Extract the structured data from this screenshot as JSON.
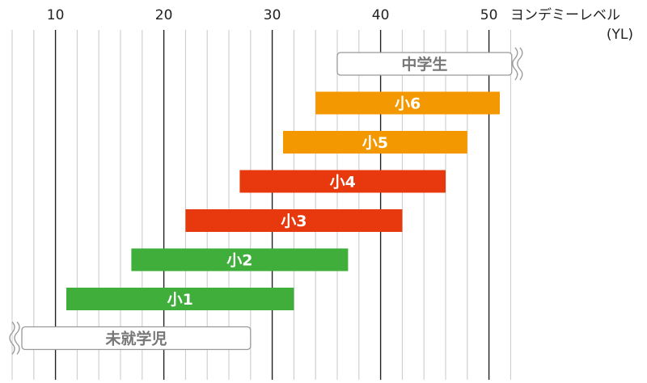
{
  "chart_data": {
    "type": "bar",
    "orientation": "horizontal-range",
    "xlim": [
      6,
      53
    ],
    "x_ticks": [
      10,
      20,
      30,
      40,
      50
    ],
    "x_unit_label_line1": "ヨンデミーレベル",
    "x_unit_label_line2": "(YL)",
    "grid": true,
    "minor_grid_step": 2,
    "bars": [
      {
        "label": "中学生",
        "start": 36,
        "end": 53,
        "color": "#ffffff",
        "outline": true,
        "break_end": true
      },
      {
        "label": "小6",
        "start": 34,
        "end": 51,
        "color": "#f39800"
      },
      {
        "label": "小5",
        "start": 31,
        "end": 48,
        "color": "#f39800"
      },
      {
        "label": "小4",
        "start": 27,
        "end": 46,
        "color": "#e8380d"
      },
      {
        "label": "小3",
        "start": 22,
        "end": 42,
        "color": "#e8380d"
      },
      {
        "label": "小2",
        "start": 17,
        "end": 37,
        "color": "#3fae3a"
      },
      {
        "label": "小1",
        "start": 11,
        "end": 32,
        "color": "#3fae3a"
      },
      {
        "label": "未就学児",
        "start": 6,
        "end": 28,
        "color": "#ffffff",
        "outline": true,
        "break_start": true
      }
    ]
  }
}
